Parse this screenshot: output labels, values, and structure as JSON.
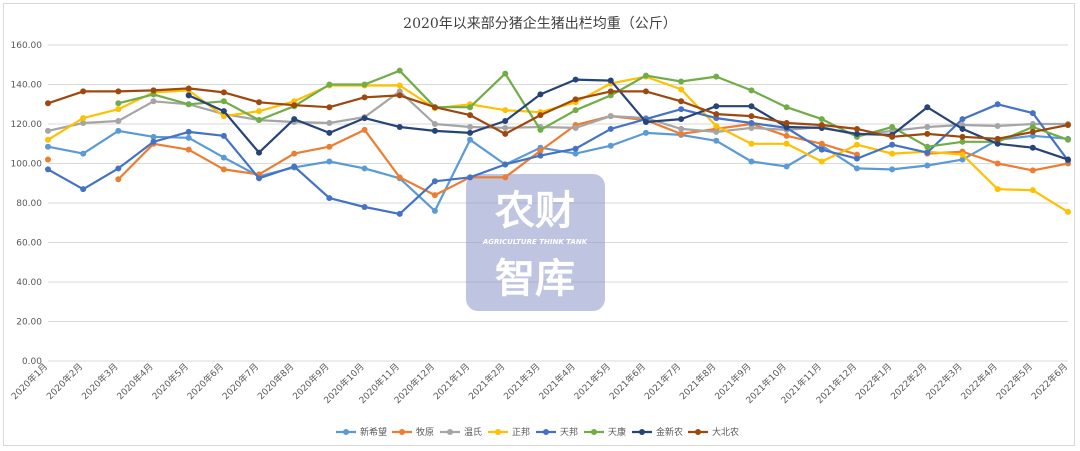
{
  "chart_data": {
    "type": "line",
    "title": "2020年以来部分猪企生猪出栏均重（公斤）",
    "xlabel": "",
    "ylabel": "",
    "ylim": [
      0,
      160
    ],
    "yticks": [
      "0.00",
      "20.00",
      "40.00",
      "60.00",
      "80.00",
      "100.00",
      "120.00",
      "140.00",
      "160.00"
    ],
    "grid": true,
    "legend_position": "bottom",
    "categories": [
      "2020年1月",
      "2020年2月",
      "2020年3月",
      "2020年4月",
      "2020年5月",
      "2020年6月",
      "2020年7月",
      "2020年8月",
      "2020年9月",
      "2020年10月",
      "2020年11月",
      "2020年12月",
      "2021年1月",
      "2021年2月",
      "2021年3月",
      "2021年4月",
      "2021年5月",
      "2021年6月",
      "2021年7月",
      "2021年8月",
      "2021年9月",
      "2021年10月",
      "2021年11月",
      "2021年12月",
      "2022年1月",
      "2022年2月",
      "2022年3月",
      "2022年4月",
      "2022年5月",
      "2022年6月"
    ],
    "series": [
      {
        "name": "新希望",
        "color": "#5B9BD5",
        "values": [
          108.5,
          105.0,
          116.5,
          113.5,
          113.0,
          103.0,
          93.5,
          98.0,
          101.0,
          97.5,
          92.5,
          76.0,
          112.0,
          99.5,
          108.0,
          105.0,
          109.0,
          115.5,
          114.5,
          111.5,
          101.0,
          98.5,
          109.0,
          97.5,
          97.0,
          99.0,
          102.0,
          112.0,
          114.0,
          112.5
        ]
      },
      {
        "name": "牧原",
        "color": "#ED7D31",
        "values": [
          102.0,
          null,
          92.0,
          110.0,
          107.0,
          97.0,
          94.5,
          105.0,
          108.5,
          117.0,
          93.0,
          84.0,
          93.0,
          93.0,
          106.5,
          119.5,
          124.0,
          122.0,
          115.0,
          117.5,
          120.0,
          114.0,
          110.0,
          104.5,
          null,
          105.0,
          106.0,
          100.0,
          96.5,
          100.0
        ]
      },
      {
        "name": "温氏",
        "color": "#A5A5A5",
        "values": [
          116.5,
          120.5,
          121.5,
          131.5,
          130.0,
          125.0,
          122.0,
          121.0,
          120.5,
          123.5,
          136.5,
          120.0,
          118.5,
          118.0,
          118.5,
          118.0,
          124.0,
          123.0,
          117.5,
          116.0,
          118.0,
          117.0,
          118.5,
          114.5,
          116.5,
          118.5,
          119.5,
          119.0,
          120.0,
          120.0
        ]
      },
      {
        "name": "正邦",
        "color": "#FFC000",
        "values": [
          112.0,
          123.0,
          127.5,
          136.0,
          137.0,
          124.0,
          126.5,
          131.5,
          139.5,
          139.5,
          139.5,
          128.0,
          130.0,
          127.0,
          126.0,
          131.0,
          140.5,
          144.0,
          137.5,
          119.0,
          110.0,
          110.0,
          101.0,
          109.5,
          105.0,
          106.0,
          104.5,
          87.0,
          86.5,
          75.5
        ]
      },
      {
        "name": "天邦",
        "color": "#4472C4",
        "values": [
          97.0,
          87.0,
          97.5,
          111.0,
          116.0,
          114.0,
          92.5,
          98.5,
          82.5,
          78.0,
          74.5,
          91.0,
          93.0,
          99.5,
          104.0,
          107.5,
          117.5,
          122.5,
          127.5,
          123.0,
          120.5,
          118.0,
          107.0,
          102.5,
          109.5,
          105.5,
          122.5,
          130.0,
          125.5,
          101.5
        ]
      },
      {
        "name": "天康",
        "color": "#70AD47",
        "values": [
          null,
          null,
          130.5,
          135.0,
          130.0,
          131.5,
          122.0,
          129.0,
          140.0,
          140.0,
          147.0,
          128.5,
          128.5,
          145.5,
          117.0,
          127.0,
          134.5,
          144.5,
          141.5,
          144.0,
          137.0,
          128.5,
          122.5,
          113.5,
          118.5,
          108.5,
          111.0,
          111.0,
          118.5,
          112.0
        ]
      },
      {
        "name": "金新农",
        "color": "#264478",
        "values": [
          null,
          null,
          null,
          null,
          134.5,
          126.5,
          105.5,
          122.5,
          115.5,
          123.0,
          118.5,
          116.5,
          115.5,
          121.5,
          135.0,
          142.5,
          142.0,
          121.0,
          122.5,
          129.0,
          129.0,
          118.5,
          118.0,
          115.0,
          114.5,
          128.5,
          117.5,
          110.0,
          108.0,
          102.0
        ]
      },
      {
        "name": "大北农",
        "color": "#9E480E",
        "values": [
          130.5,
          136.5,
          136.5,
          137.0,
          138.0,
          136.0,
          131.0,
          129.5,
          128.5,
          133.5,
          134.5,
          128.5,
          124.5,
          115.0,
          124.5,
          132.5,
          136.5,
          136.5,
          131.5,
          125.0,
          124.0,
          120.5,
          119.5,
          117.5,
          113.5,
          115.0,
          113.5,
          112.5,
          116.0,
          119.5
        ]
      }
    ]
  },
  "watermark": {
    "line1": "农财",
    "line2": "AGRICULTURE  THINK TANK",
    "line3": "智库",
    "color": "#8A95C9"
  }
}
